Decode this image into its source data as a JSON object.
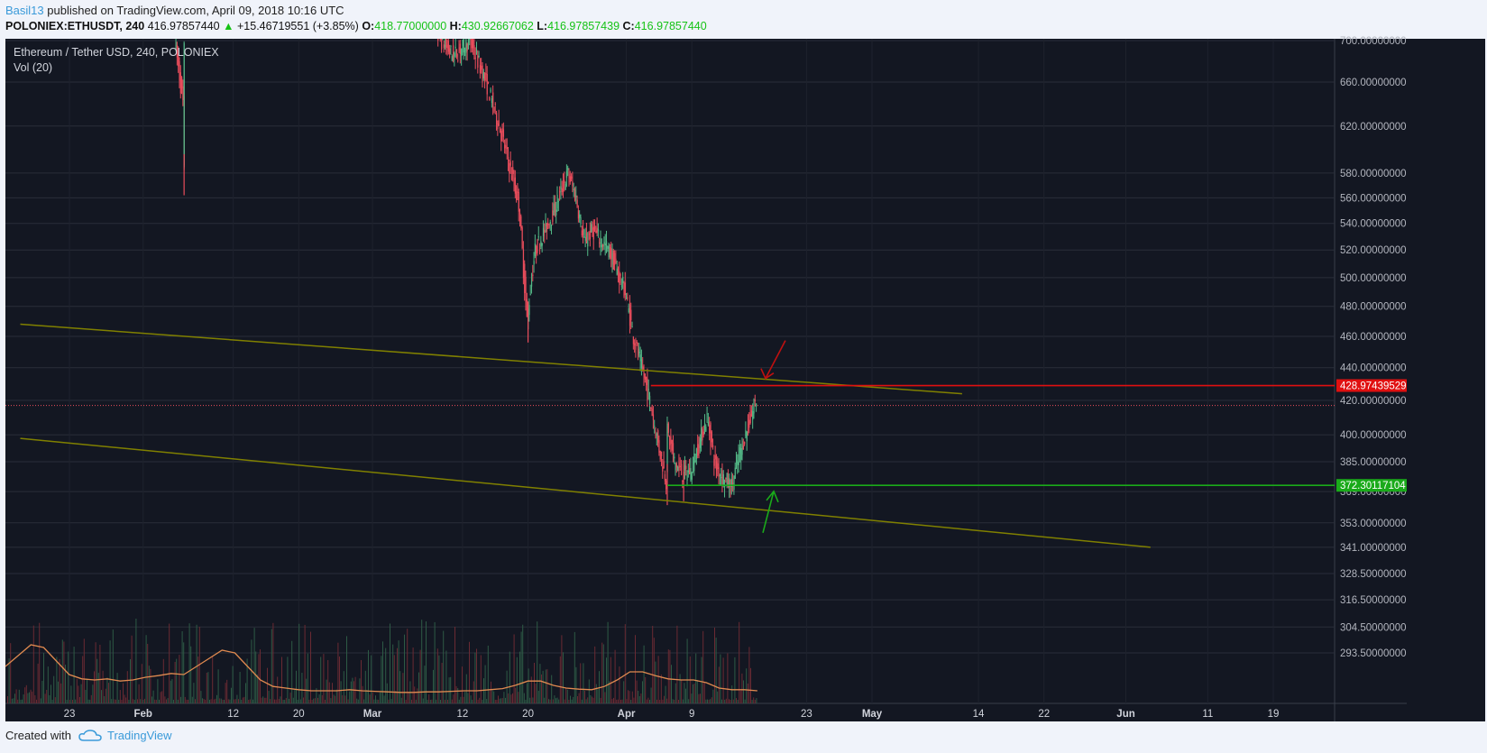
{
  "header": {
    "author": "Basil13",
    "published": " published on TradingView.com, April 09, 2018 10:16 UTC",
    "symbol": "POLONIEX:ETHUSDT, 240",
    "last": "416.97857440",
    "arrow": "▲",
    "change": "+15.46719551 (+3.85%)",
    "o_label": "O:",
    "o_value": "418.77000000",
    "h_label": "H:",
    "h_value": "430.92667062",
    "l_label": "L:",
    "l_value": "416.97857439",
    "c_label": "C:",
    "c_value": "416.97857440"
  },
  "footer": {
    "created_with": "Created with",
    "brand": "TradingView",
    "logo_icon": "tradingview-cloud-icon"
  },
  "colors": {
    "bg": "#131722",
    "grid": "#2a2e39",
    "candle_up": "#53b987",
    "candle_down": "#eb4d5c",
    "trend": "#808000",
    "red_level": "#e01010",
    "green_level": "#1aaa1a",
    "vol_ma": "#e08a50"
  },
  "chart_data": {
    "type": "candlestick",
    "title": "Ethereum / Tether USD, 240, POLONIEX",
    "indicator": "Vol (20)",
    "yscale": "log",
    "ylim": [
      285,
      705
    ],
    "y_ticks": [
      "700.00000000",
      "660.00000000",
      "620.00000000",
      "580.00000000",
      "560.00000000",
      "540.00000000",
      "520.00000000",
      "500.00000000",
      "480.00000000",
      "460.00000000",
      "440.00000000",
      "420.00000000",
      "400.00000000",
      "385.00000000",
      "369.00000000",
      "353.00000000",
      "341.00000000",
      "328.50000000",
      "316.50000000",
      "304.50000000",
      "293.50000000"
    ],
    "y_tick_values": [
      700,
      660,
      620,
      580,
      560,
      540,
      520,
      500,
      480,
      460,
      440,
      420,
      400,
      385,
      369,
      353,
      341,
      328.5,
      316.5,
      304.5,
      293.5
    ],
    "x_ticks": [
      "23",
      "Feb",
      "12",
      "20",
      "Mar",
      "12",
      "20",
      "Apr",
      "9",
      "23",
      "May",
      "14",
      "22",
      "Jun",
      "11",
      "19"
    ],
    "x_tick_dates": [
      "2018-01-23",
      "2018-02-01",
      "2018-02-12",
      "2018-02-20",
      "2018-03-01",
      "2018-03-12",
      "2018-03-20",
      "2018-04-01",
      "2018-04-09",
      "2018-04-23",
      "2018-05-01",
      "2018-05-14",
      "2018-05-22",
      "2018-06-01",
      "2018-06-11",
      "2018-06-19"
    ],
    "price_path": [
      [
        "2018-02-05",
        700
      ],
      [
        "2018-02-06",
        640
      ],
      [
        "2018-02-06",
        580
      ],
      [
        "2018-02-06",
        700
      ],
      [
        "2018-03-09",
        705
      ],
      [
        "2018-03-11",
        685
      ],
      [
        "2018-03-13",
        700
      ],
      [
        "2018-03-15",
        660
      ],
      [
        "2018-03-17",
        610
      ],
      [
        "2018-03-19",
        555
      ],
      [
        "2018-03-20",
        470
      ],
      [
        "2018-03-21",
        520
      ],
      [
        "2018-03-23",
        545
      ],
      [
        "2018-03-25",
        580
      ],
      [
        "2018-03-26",
        560
      ],
      [
        "2018-03-27",
        525
      ],
      [
        "2018-03-28",
        535
      ],
      [
        "2018-03-30",
        520
      ],
      [
        "2018-04-01",
        490
      ],
      [
        "2018-04-02",
        460
      ],
      [
        "2018-04-03",
        440
      ],
      [
        "2018-04-04",
        420
      ],
      [
        "2018-04-05",
        395
      ],
      [
        "2018-04-06",
        375
      ],
      [
        "2018-04-06",
        405
      ],
      [
        "2018-04-07",
        385
      ],
      [
        "2018-04-08",
        378
      ],
      [
        "2018-04-09",
        380
      ],
      [
        "2018-04-10",
        395
      ],
      [
        "2018-04-11",
        410
      ],
      [
        "2018-04-12",
        383
      ],
      [
        "2018-04-13",
        376
      ],
      [
        "2018-04-14",
        372
      ],
      [
        "2018-04-15",
        390
      ],
      [
        "2018-04-16",
        405
      ],
      [
        "2018-04-17",
        420
      ]
    ],
    "lows_marked": [
      562,
      456,
      362
    ],
    "horizontal_levels": [
      {
        "label": "428.97439529",
        "value": 428.97439529,
        "color": "#e01010",
        "start_date": "2018-04-04"
      },
      {
        "label": "372.30117104",
        "value": 372.30117104,
        "color": "#1aaa1a",
        "start_date": "2018-04-06"
      }
    ],
    "last_price_line": {
      "value": 416.9785744,
      "style": "dotted"
    },
    "trendlines": [
      {
        "from": [
          "2018-01-17",
          468
        ],
        "to": [
          "2018-05-12",
          424
        ]
      },
      {
        "from": [
          "2018-01-17",
          398
        ],
        "to": [
          "2018-06-04",
          341
        ]
      }
    ],
    "arrows": [
      {
        "color": "#c01010",
        "direction": "down",
        "near": [
          "2018-04-18",
          430
        ]
      },
      {
        "color": "#1aaa1a",
        "direction": "up",
        "near": [
          "2018-04-19",
          372
        ]
      }
    ],
    "volume_ma": [
      0.55,
      0.75,
      0.95,
      0.9,
      0.65,
      0.4,
      0.32,
      0.3,
      0.32,
      0.28,
      0.3,
      0.35,
      0.38,
      0.42,
      0.4,
      0.55,
      0.7,
      0.85,
      0.8,
      0.55,
      0.3,
      0.18,
      0.15,
      0.12,
      0.1,
      0.1,
      0.1,
      0.12,
      0.1,
      0.09,
      0.08,
      0.07,
      0.07,
      0.08,
      0.08,
      0.09,
      0.1,
      0.1,
      0.12,
      0.14,
      0.2,
      0.28,
      0.28,
      0.2,
      0.15,
      0.13,
      0.12,
      0.18,
      0.3,
      0.45,
      0.45,
      0.38,
      0.32,
      0.3,
      0.3,
      0.25,
      0.15,
      0.12,
      0.12,
      0.1
    ]
  }
}
